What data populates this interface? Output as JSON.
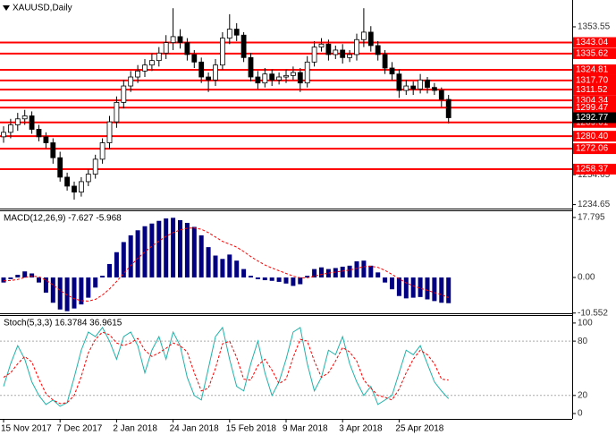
{
  "chart_data": [
    {
      "type": "candlestick",
      "title": "XAUUSD,Daily",
      "open": [
        1280,
        1283,
        1288,
        1292,
        1294,
        1285,
        1280,
        1276,
        1266,
        1253,
        1247,
        1243,
        1250,
        1255,
        1265,
        1276,
        1290,
        1303,
        1314,
        1320,
        1324,
        1328,
        1331,
        1336,
        1343,
        1347,
        1343,
        1335,
        1330,
        1320,
        1318,
        1328,
        1346,
        1352,
        1348,
        1333,
        1320,
        1316,
        1322,
        1318,
        1320,
        1321,
        1323,
        1316,
        1330,
        1340,
        1342,
        1335,
        1338,
        1333,
        1335,
        1345,
        1350,
        1341,
        1335,
        1326,
        1322,
        1311,
        1314,
        1312,
        1318,
        1313,
        1311,
        1305
      ],
      "high": [
        1287,
        1292,
        1296,
        1298,
        1297,
        1288,
        1283,
        1279,
        1270,
        1256,
        1250,
        1253,
        1258,
        1268,
        1279,
        1294,
        1307,
        1318,
        1324,
        1328,
        1332,
        1336,
        1340,
        1348,
        1366,
        1352,
        1346,
        1338,
        1333,
        1323,
        1332,
        1350,
        1362,
        1356,
        1350,
        1336,
        1324,
        1326,
        1325,
        1323,
        1325,
        1327,
        1326,
        1334,
        1344,
        1346,
        1345,
        1341,
        1342,
        1338,
        1349,
        1366,
        1354,
        1344,
        1338,
        1330,
        1325,
        1318,
        1317,
        1322,
        1320,
        1316,
        1313,
        1308
      ],
      "low": [
        1276,
        1279,
        1284,
        1288,
        1282,
        1277,
        1272,
        1262,
        1250,
        1244,
        1238,
        1240,
        1247,
        1252,
        1262,
        1272,
        1286,
        1299,
        1310,
        1316,
        1320,
        1324,
        1327,
        1332,
        1338,
        1339,
        1331,
        1326,
        1316,
        1310,
        1314,
        1325,
        1342,
        1344,
        1330,
        1317,
        1312,
        1313,
        1314,
        1315,
        1316,
        1318,
        1310,
        1313,
        1327,
        1337,
        1331,
        1332,
        1329,
        1330,
        1331,
        1340,
        1337,
        1331,
        1322,
        1318,
        1306,
        1308,
        1308,
        1309,
        1309,
        1308,
        1300,
        1289
      ],
      "close": [
        1283,
        1288,
        1292,
        1294,
        1285,
        1280,
        1276,
        1266,
        1253,
        1247,
        1243,
        1250,
        1255,
        1265,
        1276,
        1290,
        1303,
        1314,
        1320,
        1324,
        1328,
        1331,
        1336,
        1343,
        1347,
        1343,
        1335,
        1330,
        1320,
        1318,
        1328,
        1346,
        1352,
        1348,
        1333,
        1320,
        1316,
        1322,
        1318,
        1320,
        1321,
        1323,
        1316,
        1330,
        1340,
        1342,
        1335,
        1338,
        1333,
        1335,
        1345,
        1350,
        1341,
        1335,
        1326,
        1322,
        1311,
        1314,
        1312,
        1318,
        1313,
        1311,
        1305,
        1292.77
      ],
      "up_color": "#ffffff",
      "down_color": "#000000",
      "ylim": [
        1232.6,
        1371.5
      ],
      "yticks": [
        1353.55,
        1254.65,
        1234.65
      ],
      "levels": [
        1343.04,
        1335.62,
        1324.81,
        {
          "value": 1317.7,
          "label": "1317.70"
        },
        1311.52,
        1304.34,
        1299.47,
        1289.61,
        {
          "value": 1280.4,
          "label": "1280.40"
        },
        1272.06,
        1258.37
      ],
      "level_color": "#ff0000",
      "last": 1292.77
    },
    {
      "type": "macd",
      "title": "MACD(12,26,9) -7.627 -5.968",
      "series": [
        {
          "color": "#000080",
          "style": "bar",
          "values": [
            -1.5,
            -0.5,
            0.8,
            1.8,
            1.2,
            -1.5,
            -4.5,
            -7.5,
            -9.5,
            -10,
            -9.2,
            -8,
            -6,
            -3,
            0.5,
            4,
            7.5,
            10.5,
            12.5,
            14,
            15.2,
            16,
            16.8,
            17.5,
            17.7,
            17,
            16.2,
            15,
            12.5,
            9,
            6.5,
            5.5,
            6.8,
            5,
            2.5,
            0.5,
            -0.5,
            -0.8,
            -1,
            -1.3,
            -1.8,
            -2.5,
            -2,
            0.5,
            2.5,
            3,
            2.5,
            2.8,
            3.2,
            3.5,
            4.8,
            5,
            3.5,
            1.5,
            -1.5,
            -3.5,
            -5.5,
            -6.2,
            -6,
            -5.8,
            -6.5,
            -7,
            -7.5,
            -7.627
          ]
        },
        {
          "color": "#ff0000",
          "style": "dashed",
          "values": [
            -1,
            -0.9,
            -0.6,
            0,
            0.4,
            0.2,
            -0.8,
            -2.2,
            -3.8,
            -5.2,
            -6.3,
            -6.9,
            -7,
            -6.5,
            -5.2,
            -3.4,
            -1.2,
            1.2,
            3.5,
            5.7,
            7.6,
            9.3,
            10.8,
            12.2,
            13.3,
            14.1,
            14.6,
            14.7,
            14.3,
            13.3,
            12,
            10.7,
            9.9,
            9,
            7.7,
            6.2,
            4.9,
            3.7,
            2.8,
            2,
            1.2,
            0.4,
            -0.1,
            -0.1,
            0.4,
            0.9,
            1.3,
            1.6,
            1.9,
            2.2,
            2.7,
            3.2,
            3.3,
            3,
            2.1,
            0.9,
            -0.4,
            -1.6,
            -2.5,
            -3.2,
            -3.8,
            -4.5,
            -5.1,
            -5.968
          ]
        }
      ],
      "ylim": [
        -10.62,
        19.65
      ],
      "yticks": [
        17.795,
        {
          "value": 0,
          "label": "0.00"
        },
        -10.552
      ]
    },
    {
      "type": "stochastic",
      "title": "Stoch(5,3,3) 16.3784 36.9615",
      "categories": [
        "15 Nov 2017",
        null,
        null,
        null,
        null,
        null,
        null,
        null,
        "7 Dec 2017",
        null,
        null,
        null,
        null,
        null,
        null,
        null,
        "2 Jan 2018",
        null,
        null,
        null,
        null,
        null,
        null,
        null,
        "24 Jan 2018",
        null,
        null,
        null,
        null,
        null,
        null,
        null,
        "15 Feb 2018",
        null,
        null,
        null,
        null,
        null,
        null,
        null,
        "9 Mar 2018",
        null,
        null,
        null,
        null,
        null,
        null,
        null,
        "3 Apr 2018",
        null,
        null,
        null,
        null,
        null,
        null,
        null,
        "25 Apr 2018",
        null,
        null,
        null,
        null,
        null,
        null,
        null
      ],
      "series": [
        {
          "color": "#20b2aa",
          "style": "solid",
          "values": [
            30,
            55,
            75,
            60,
            35,
            20,
            10,
            15,
            8,
            12,
            40,
            70,
            90,
            85,
            95,
            80,
            60,
            85,
            90,
            75,
            45,
            70,
            85,
            60,
            90,
            75,
            40,
            20,
            15,
            50,
            85,
            95,
            60,
            30,
            25,
            55,
            80,
            45,
            20,
            35,
            60,
            90,
            95,
            55,
            25,
            40,
            70,
            65,
            85,
            55,
            35,
            20,
            30,
            10,
            15,
            20,
            45,
            70,
            65,
            75,
            55,
            35,
            25,
            16.3784
          ]
        },
        {
          "color": "#ff0000",
          "style": "dashed",
          "values": [
            40,
            45,
            55,
            63,
            57,
            38,
            22,
            15,
            11,
            12,
            20,
            41,
            67,
            82,
            90,
            87,
            78,
            75,
            78,
            83,
            70,
            63,
            67,
            72,
            78,
            75,
            68,
            45,
            25,
            28,
            50,
            77,
            80,
            62,
            38,
            37,
            53,
            60,
            48,
            33,
            38,
            62,
            82,
            80,
            58,
            40,
            45,
            58,
            73,
            68,
            58,
            37,
            28,
            20,
            18,
            15,
            27,
            45,
            60,
            70,
            65,
            55,
            38,
            36.9615
          ]
        }
      ],
      "ylim": [
        -5.9,
        107.8
      ],
      "yticks": [
        100,
        80,
        20,
        0
      ],
      "levels": [
        80,
        20
      ]
    }
  ]
}
